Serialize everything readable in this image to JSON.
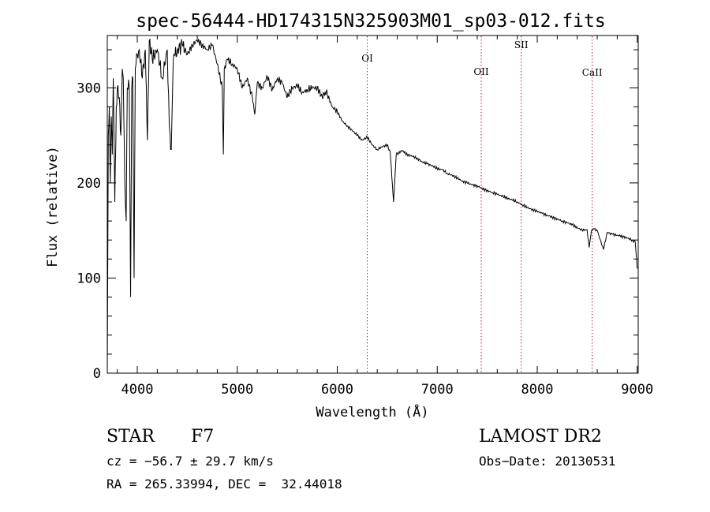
{
  "chart_data": {
    "type": "line",
    "title": "spec-56444-HD174315N325903M01_sp03-012.fits",
    "xlabel": "Wavelength (Å)",
    "ylabel": "Flux (relative)",
    "xlim": [
      3700,
      9010
    ],
    "ylim": [
      0,
      355
    ],
    "x_ticks": [
      4000,
      5000,
      6000,
      7000,
      8000,
      9000
    ],
    "y_ticks": [
      0,
      100,
      200,
      300
    ],
    "series": [
      {
        "name": "spectrum",
        "x": [
          3700,
          3710,
          3720,
          3730,
          3740,
          3750,
          3760,
          3775,
          3790,
          3800,
          3820,
          3835,
          3850,
          3860,
          3875,
          3889,
          3900,
          3920,
          3933,
          3945,
          3955,
          3968,
          3980,
          4000,
          4020,
          4050,
          4080,
          4101,
          4120,
          4150,
          4200,
          4250,
          4300,
          4320,
          4340,
          4360,
          4400,
          4450,
          4500,
          4550,
          4600,
          4650,
          4700,
          4750,
          4800,
          4850,
          4861,
          4870,
          4900,
          4950,
          5000,
          5050,
          5100,
          5150,
          5175,
          5200,
          5250,
          5300,
          5350,
          5400,
          5450,
          5500,
          5550,
          5600,
          5650,
          5700,
          5750,
          5800,
          5850,
          5890,
          5950,
          6000,
          6050,
          6100,
          6150,
          6200,
          6250,
          6300,
          6350,
          6400,
          6450,
          6500,
          6530,
          6563,
          6590,
          6650,
          6700,
          6750,
          6800,
          6850,
          6900,
          6950,
          7000,
          7050,
          7100,
          7150,
          7200,
          7250,
          7300,
          7350,
          7400,
          7450,
          7500,
          7550,
          7600,
          7650,
          7700,
          7750,
          7800,
          7850,
          7900,
          7950,
          8000,
          8050,
          8100,
          8150,
          8200,
          8250,
          8300,
          8350,
          8400,
          8450,
          8498,
          8520,
          8542,
          8560,
          8600,
          8662,
          8700,
          8750,
          8800,
          8850,
          8900,
          8950,
          8980,
          9000
        ],
        "values": [
          0,
          250,
          280,
          200,
          270,
          230,
          310,
          180,
          280,
          300,
          290,
          250,
          320,
          310,
          200,
          160,
          300,
          300,
          80,
          300,
          310,
          100,
          320,
          335,
          340,
          310,
          340,
          245,
          350,
          330,
          340,
          310,
          340,
          260,
          235,
          330,
          340,
          345,
          335,
          345,
          350,
          345,
          340,
          345,
          325,
          300,
          230,
          320,
          330,
          325,
          320,
          300,
          310,
          290,
          272,
          305,
          300,
          312,
          298,
          310,
          305,
          290,
          300,
          302,
          295,
          298,
          300,
          300,
          290,
          296,
          280,
          275,
          265,
          260,
          255,
          250,
          245,
          248,
          240,
          235,
          238,
          240,
          232,
          180,
          230,
          234,
          230,
          228,
          226,
          222,
          220,
          218,
          215,
          214,
          210,
          208,
          205,
          202,
          200,
          198,
          197,
          194,
          192,
          190,
          188,
          186,
          184,
          182,
          180,
          177,
          174,
          172,
          170,
          168,
          166,
          164,
          162,
          160,
          158,
          156,
          153,
          150,
          151,
          132,
          150,
          152,
          150,
          130,
          148,
          146,
          145,
          144,
          142,
          140,
          138,
          110
        ]
      }
    ],
    "line_markers": [
      {
        "label": "OI",
        "x": 6300
      },
      {
        "label": "OII",
        "x": 7440
      },
      {
        "label": "SII",
        "x": 7840
      },
      {
        "label": "CaII",
        "x": 8550
      }
    ]
  },
  "info": {
    "object_type": "STAR",
    "subclass": "F7",
    "survey": "LAMOST DR2",
    "cz_text": "cz = −56.7 ± 29.7 km/s",
    "obs_date": "Obs−Date: 20130531",
    "radec_text": "RA = 265.33994, DEC =  32.44018"
  },
  "colors": {
    "spectrum": "#000000",
    "marker_line": "#b02020",
    "axis": "#000000"
  }
}
